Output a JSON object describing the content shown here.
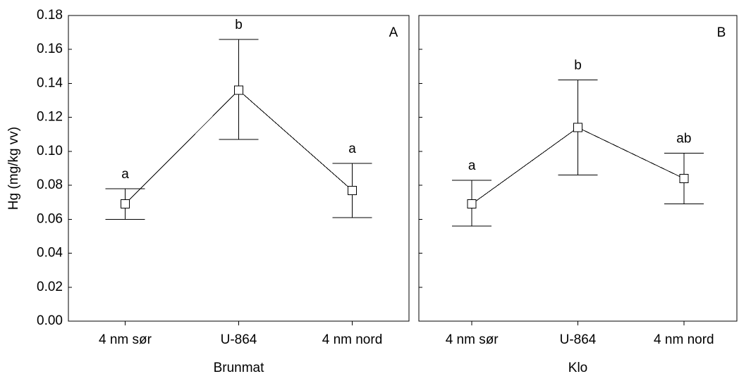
{
  "chart_data": [
    {
      "type": "errorline",
      "panel_label": "A",
      "ylabel": "Hg (mg/kg vv)",
      "xlabel": "Brunmat",
      "categories": [
        "4 nm sør",
        "U-864",
        "4 nm nord"
      ],
      "values": [
        0.069,
        0.136,
        0.077
      ],
      "lower": [
        0.06,
        0.107,
        0.061
      ],
      "upper": [
        0.078,
        0.166,
        0.093
      ],
      "letters": [
        "a",
        "b",
        "a"
      ],
      "ylim": [
        0,
        0.18
      ],
      "yticks": [
        {
          "value": 0,
          "label": "0.00"
        },
        {
          "value": 0.02,
          "label": "0.02"
        },
        {
          "value": 0.04,
          "label": "0.04"
        },
        {
          "value": 0.06,
          "label": "0.06"
        },
        {
          "value": 0.08,
          "label": "0.08"
        },
        {
          "value": 0.1,
          "label": "0.10"
        },
        {
          "value": 0.12,
          "label": "0.12"
        },
        {
          "value": 0.14,
          "label": "0.14"
        },
        {
          "value": 0.16,
          "label": "0.16"
        },
        {
          "value": 0.18,
          "label": "0.18"
        }
      ],
      "color": "#000000"
    },
    {
      "type": "errorline",
      "panel_label": "B",
      "xlabel": "Klo",
      "categories": [
        "4 nm sør",
        "U-864",
        "4 nm nord"
      ],
      "values": [
        0.069,
        0.114,
        0.084
      ],
      "lower": [
        0.056,
        0.086,
        0.069
      ],
      "upper": [
        0.083,
        0.142,
        0.099
      ],
      "letters": [
        "a",
        "b",
        "ab"
      ],
      "ylim": [
        0,
        0.18
      ],
      "yticks": [
        0,
        0.02,
        0.04,
        0.06,
        0.08,
        0.1,
        0.12,
        0.14,
        0.16,
        0.18
      ],
      "color": "#000000"
    }
  ]
}
